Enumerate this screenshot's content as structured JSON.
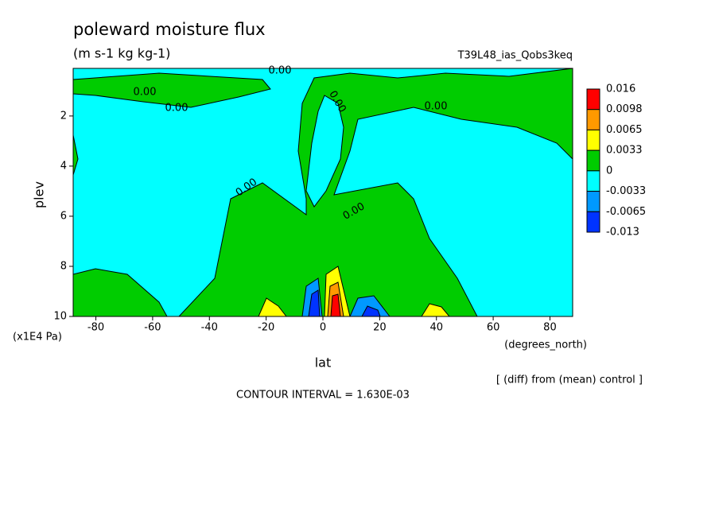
{
  "chart_data": {
    "type": "contour",
    "title": "poleward moisture flux",
    "subtitle": "(m s-1 kg kg-1)",
    "dataset": "T39L48_ias_Qobs3keq",
    "xlabel": "lat",
    "xunits": "(degrees_north)",
    "ylabel": "plev",
    "yunits": "(x1E4 Pa)",
    "xlim": [
      -88,
      88
    ],
    "xticks": [
      -80,
      -60,
      -40,
      -20,
      0,
      20,
      40,
      60,
      80
    ],
    "ylim": [
      10,
      0.1
    ],
    "yticks": [
      2,
      4,
      6,
      8,
      10
    ],
    "levels": [
      0.016,
      0.0098,
      0.0065,
      0.0033,
      0,
      -0.0033,
      -0.0065,
      -0.013
    ],
    "level_colors": [
      "#ff0000",
      "#ff9900",
      "#ffff00",
      "#00cc00",
      "#00ffff",
      "#0099ff",
      "#0033ff"
    ],
    "contour_labels": [
      "0.00",
      "0.00",
      "0.00",
      "0.00",
      "0.00",
      "0.00",
      "0.00"
    ],
    "contour_interval": "CONTOUR INTERVAL = 1.630E-03",
    "footnote": "[ (diff) from (mean) control ]"
  }
}
